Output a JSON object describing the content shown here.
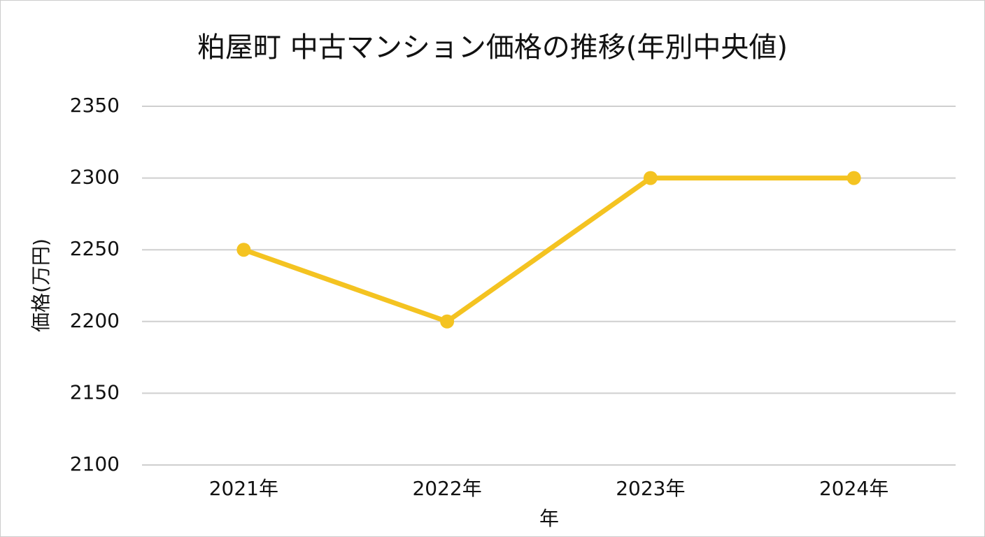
{
  "chart_data": {
    "type": "line",
    "title": "粕屋町 中古マンション価格の推移(年別中央値)",
    "x_label": "年",
    "y_label": "価格(万円)",
    "categories": [
      "2021年",
      "2022年",
      "2023年",
      "2024年"
    ],
    "series": [
      {
        "name": "価格",
        "color": "#f4c321",
        "values": [
          2250,
          2200,
          2300,
          2300
        ]
      }
    ],
    "ylim": [
      2100,
      2350
    ],
    "yticks": [
      2100,
      2150,
      2200,
      2250,
      2300,
      2350
    ],
    "grid": true
  }
}
